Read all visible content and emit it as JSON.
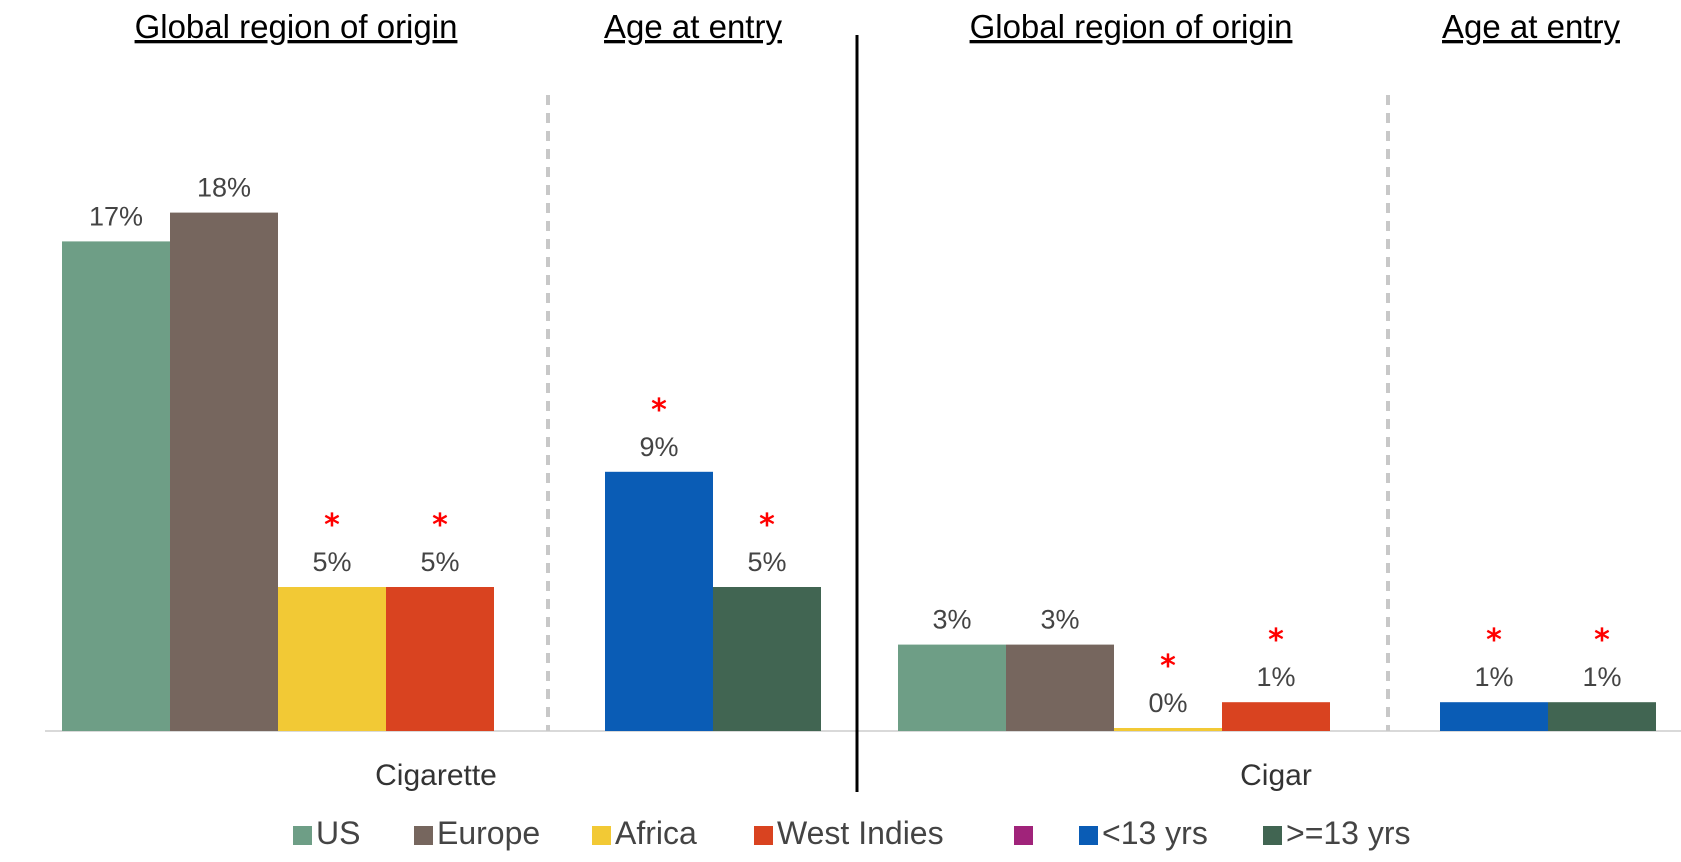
{
  "chart_data": {
    "type": "bar",
    "section_titles": {
      "region": "Global region of origin",
      "age": "Age at entry"
    },
    "groups": [
      {
        "label": "Cigarette",
        "region_bars": [
          {
            "series": "US",
            "value": 17,
            "label": "17%",
            "significant": false
          },
          {
            "series": "Europe",
            "value": 18,
            "label": "18%",
            "significant": false
          },
          {
            "series": "Africa",
            "value": 5,
            "label": "5%",
            "significant": true
          },
          {
            "series": "West Indies",
            "value": 5,
            "label": "5%",
            "significant": true
          }
        ],
        "age_bars": [
          {
            "series": "<13 yrs",
            "value": 9,
            "label": "9%",
            "significant": true
          },
          {
            "series": ">=13 yrs",
            "value": 5,
            "label": "5%",
            "significant": true
          }
        ]
      },
      {
        "label": "Cigar",
        "region_bars": [
          {
            "series": "US",
            "value": 3,
            "label": "3%",
            "significant": false
          },
          {
            "series": "Europe",
            "value": 3,
            "label": "3%",
            "significant": false
          },
          {
            "series": "Africa",
            "value": 0,
            "label": "0%",
            "significant": true
          },
          {
            "series": "West Indies",
            "value": 1,
            "label": "1%",
            "significant": true
          }
        ],
        "age_bars": [
          {
            "series": "<13 yrs",
            "value": 1,
            "label": "1%",
            "significant": true
          },
          {
            "series": ">=13 yrs",
            "value": 1,
            "label": "1%",
            "significant": true
          }
        ]
      }
    ],
    "significance_marker": "*",
    "legend": [
      {
        "name": "US",
        "color": "#6e9e86"
      },
      {
        "name": "Europe",
        "color": "#76665e"
      },
      {
        "name": "Africa",
        "color": "#f2c935"
      },
      {
        "name": "West Indies",
        "color": "#d94320"
      },
      {
        "name": "",
        "color": "#a0237a"
      },
      {
        "name": "<13 yrs",
        "color": "#0a5cb5"
      },
      {
        "name": ">=13 yrs",
        "color": "#416552"
      }
    ],
    "legend_placement": "bottom",
    "grid": false,
    "ylim": [
      0,
      19
    ]
  }
}
